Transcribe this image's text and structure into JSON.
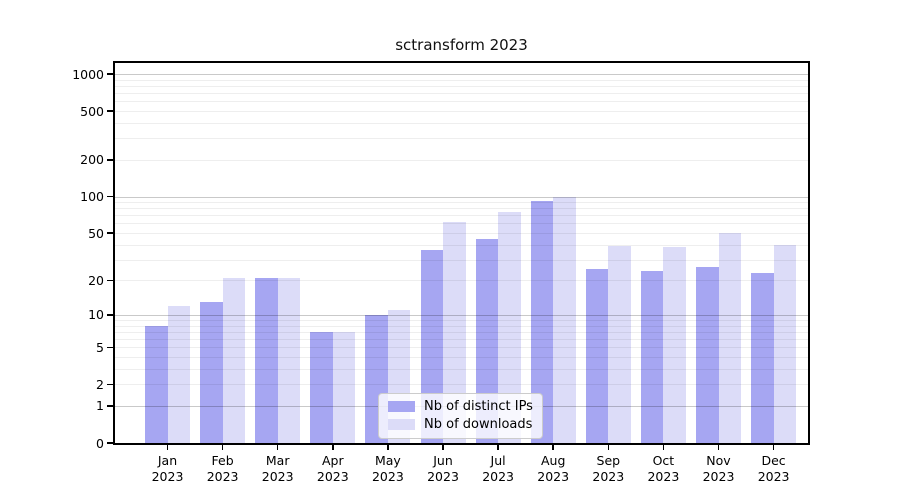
{
  "chart_data": {
    "type": "bar",
    "title": "sctransform 2023",
    "x_tick_months": [
      "Jan",
      "Feb",
      "Mar",
      "Apr",
      "May",
      "Jun",
      "Jul",
      "Aug",
      "Sep",
      "Oct",
      "Nov",
      "Dec"
    ],
    "x_tick_year": "2023",
    "series": [
      {
        "name": "Nb of distinct IPs",
        "color": "#a6a6f2",
        "values": [
          8,
          13,
          21,
          7,
          10,
          36,
          45,
          92,
          25,
          24,
          26,
          23
        ]
      },
      {
        "name": "Nb of downloads",
        "color": "#dcdcf8",
        "values": [
          12,
          21,
          21,
          7,
          11,
          62,
          74,
          100,
          39,
          38,
          50,
          40
        ]
      }
    ],
    "y_scale": "log1p",
    "ylim": [
      0,
      1100
    ],
    "y_ticks_labeled": [
      0,
      1,
      2,
      5,
      10,
      20,
      50,
      100,
      200,
      500,
      1000
    ],
    "y_grid_major": [
      1,
      10,
      100,
      1000
    ],
    "y_grid_minor": [
      2,
      3,
      4,
      5,
      6,
      7,
      8,
      9,
      20,
      30,
      40,
      50,
      60,
      70,
      80,
      90,
      200,
      300,
      400,
      500,
      600,
      700,
      800,
      900
    ],
    "grid": true,
    "legend_position": "lower-center-inside",
    "colors": {
      "axis": "#000000",
      "major_grid": "#c9c9c9",
      "minor_grid": "#ededed",
      "legend_border": "#cccccc"
    }
  }
}
